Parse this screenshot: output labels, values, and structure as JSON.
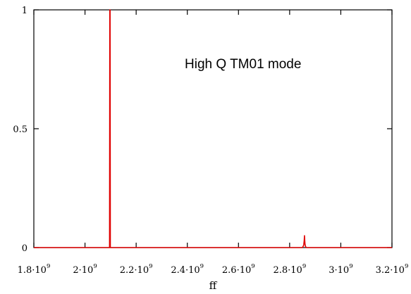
{
  "chart_data": {
    "type": "line",
    "xlabel": "ff",
    "ylabel": "",
    "xlim": [
      1800000000,
      3200000000
    ],
    "ylim": [
      0,
      1
    ],
    "x_ticks": [
      {
        "value": 1800000000,
        "mantissa": "1.8",
        "exponent": "9"
      },
      {
        "value": 2000000000,
        "mantissa": "2",
        "exponent": "9"
      },
      {
        "value": 2200000000,
        "mantissa": "2.2",
        "exponent": "9"
      },
      {
        "value": 2400000000,
        "mantissa": "2.4",
        "exponent": "9"
      },
      {
        "value": 2600000000,
        "mantissa": "2.6",
        "exponent": "9"
      },
      {
        "value": 2800000000,
        "mantissa": "2.8",
        "exponent": "9"
      },
      {
        "value": 3000000000,
        "mantissa": "3",
        "exponent": "9"
      },
      {
        "value": 3200000000,
        "mantissa": "3.2",
        "exponent": "9"
      }
    ],
    "y_ticks": [
      {
        "value": 0,
        "label": "0"
      },
      {
        "value": 0.5,
        "label": "0.5"
      },
      {
        "value": 1,
        "label": "1"
      }
    ],
    "annotations": [
      {
        "text": "High Q TM01 mode"
      }
    ],
    "series": [
      {
        "color": "#e00000",
        "x": [
          1800000000,
          2096000000,
          2097000000,
          2098000000,
          2099000000,
          2850000000,
          2855000000,
          2857000000,
          2858000000,
          2859000000,
          2860000000,
          2862000000,
          2865000000,
          3200000000
        ],
        "y": [
          0,
          0,
          1,
          1,
          0,
          0,
          0.01,
          0.03,
          0.05,
          0.03,
          0.015,
          0.005,
          0,
          0
        ]
      }
    ],
    "grid": false,
    "legend": "none"
  }
}
